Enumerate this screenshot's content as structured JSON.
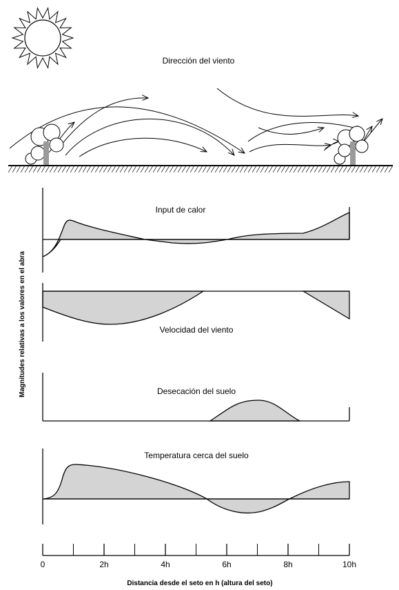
{
  "title": "Dirección del viento",
  "panels": [
    {
      "label": "Input de calor"
    },
    {
      "label": "Velocidad del viento"
    },
    {
      "label": "Desecación del suelo"
    },
    {
      "label": "Temperatura cerca del suelo"
    }
  ],
  "y_axis": {
    "label": "Magnitudes relativas a los valores en el abra"
  },
  "x_axis": {
    "label": "Distancia desde el seto en h (altura del seto)",
    "ticks": [
      "0",
      "2h",
      "4h",
      "6h",
      "8h",
      "10h"
    ]
  }
}
